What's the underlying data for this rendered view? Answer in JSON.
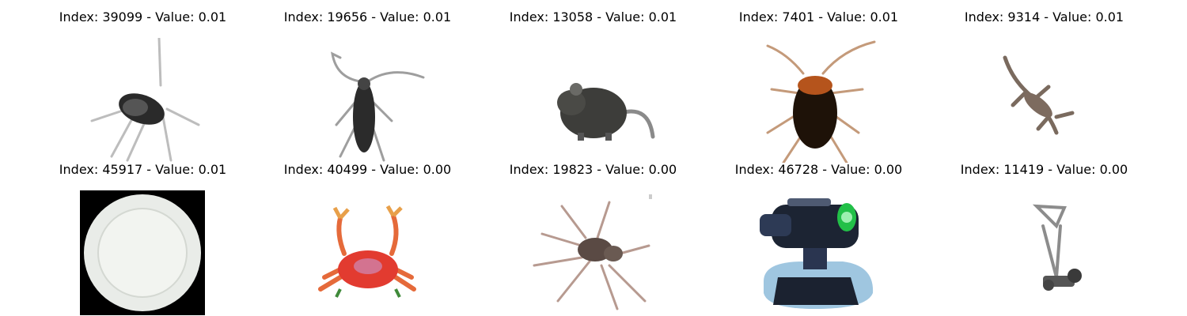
{
  "figure": {
    "images": [
      {
        "title": "Index: 39099 - Value: 0.01",
        "subject": "insect-image"
      },
      {
        "title": "Index: 19656 - Value: 0.01",
        "subject": "beetle-image"
      },
      {
        "title": "Index: 13058 - Value: 0.01",
        "subject": "mouse-image"
      },
      {
        "title": "Index: 7401 - Value: 0.01",
        "subject": "cockroach-image"
      },
      {
        "title": "Index: 9314 - Value: 0.01",
        "subject": "lizard-image"
      },
      {
        "title": "Index: 45917 - Value: 0.01",
        "subject": "plate-image"
      },
      {
        "title": "Index: 40499 - Value: 0.00",
        "subject": "crab-image"
      },
      {
        "title": "Index: 19823 - Value: 0.00",
        "subject": "spider-image"
      },
      {
        "title": "Index: 46728 - Value: 0.00",
        "subject": "lamp-image"
      },
      {
        "title": "Index: 11419 - Value: 0.00",
        "subject": "lawn-mower-image"
      }
    ]
  }
}
